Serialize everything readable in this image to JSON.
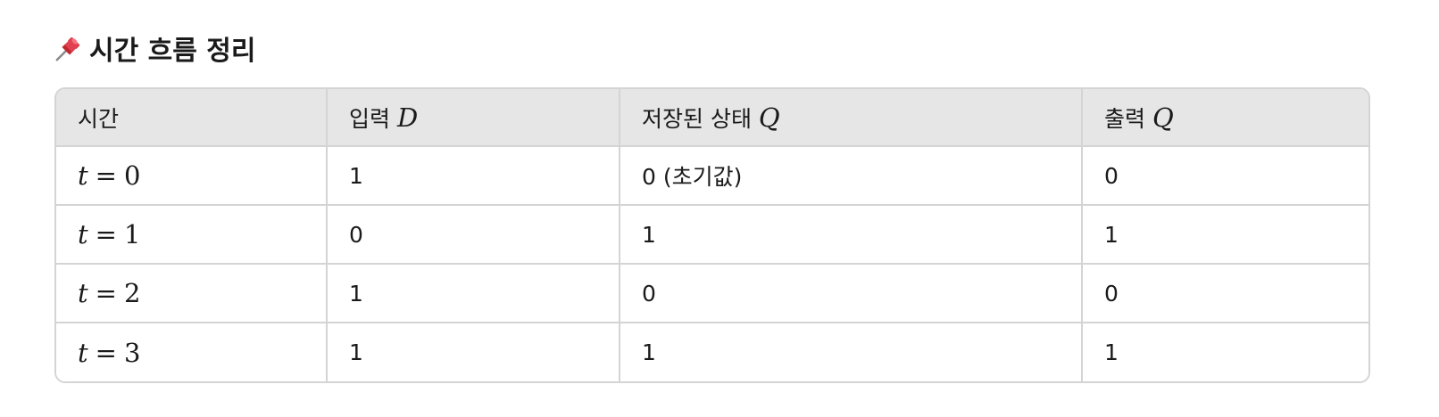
{
  "heading": {
    "icon": "pushpin-icon",
    "title": "시간 흐름 정리"
  },
  "table": {
    "headers": [
      {
        "text": "시간",
        "math": ""
      },
      {
        "text": "입력 ",
        "math": "D"
      },
      {
        "text": "저장된 상태 ",
        "math": "Q"
      },
      {
        "text": "출력 ",
        "math": "Q"
      }
    ],
    "rows": [
      {
        "t_var": "t",
        "t_op": "=",
        "t_val": "0",
        "d": "1",
        "state": "0 (초기값)",
        "out": "0"
      },
      {
        "t_var": "t",
        "t_op": "=",
        "t_val": "1",
        "d": "0",
        "state": "1",
        "out": "1"
      },
      {
        "t_var": "t",
        "t_op": "=",
        "t_val": "2",
        "d": "1",
        "state": "0",
        "out": "0"
      },
      {
        "t_var": "t",
        "t_op": "=",
        "t_val": "3",
        "d": "1",
        "state": "1",
        "out": "1"
      }
    ]
  }
}
